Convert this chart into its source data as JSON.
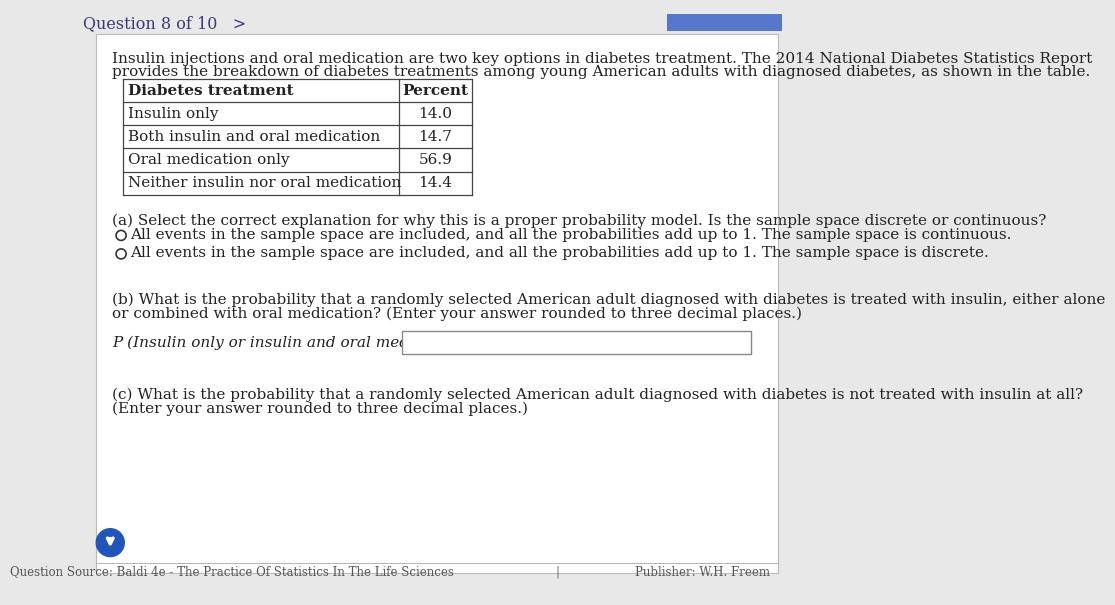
{
  "bg_color": "#e8e8e8",
  "card_color": "#ffffff",
  "header_text": "Question 8 of 10   >",
  "intro_line1": "Insulin injections and oral medication are two key options in diabetes treatment. The 2014 National Diabetes Statistics Report",
  "intro_line2": "provides the breakdown of diabetes treatments among young American adults with diagnosed diabetes, as shown in the table.",
  "table_headers": [
    "Diabetes treatment",
    "Percent"
  ],
  "table_rows": [
    [
      "Insulin only",
      "14.0"
    ],
    [
      "Both insulin and oral medication",
      "14.7"
    ],
    [
      "Oral medication only",
      "56.9"
    ],
    [
      "Neither insulin nor oral medication",
      "14.4"
    ]
  ],
  "part_a_label": "(a) S",
  "part_a_label_colored": "elect the correct explanation for why this is a proper probability model. Is the sample space discrete or continuous?",
  "part_a_text": "(a) Select the correct explanation for why this is a proper probability model. Is the sample space discrete or continuous?",
  "option1": "All events in the sample space are included, and all the probabilities add up to 1. The sample space is continuous.",
  "option2": "All events in the sample space are included, and all the probabilities add up to 1. The sample space is discrete.",
  "part_b_line1": "(b) What is the probability that a randomly selected American adult diagnosed with diabetes is treated with insulin, either alone",
  "part_b_line2": "or combined with oral medication? (Enter your answer rounded to three decimal places.)",
  "part_b_label": "P (Insulin only or insulin and oral medication) =",
  "part_c_line1": "(c) What is the probability that a randomly selected American adult diagnosed with diabetes is not treated with insulin at all?",
  "part_c_line2": "(Enter your answer rounded to three decimal places.)",
  "footer_left": "Question Source: Baldi 4e - The Practice Of Statistics In The Life Sciences",
  "footer_right": "Publisher: W.H. Freem",
  "header_color": "#3a3a7a",
  "text_color": "#222222",
  "table_border_color": "#444444",
  "option_color_a": "#4444aa",
  "font_size_intro": 11.0,
  "font_size_table": 11.0,
  "font_size_body": 11.0,
  "font_size_header": 11.5,
  "font_size_footer": 8.5,
  "arrow_circle_color": "#2255bb",
  "input_box_color": "#ffffff",
  "input_box_border": "#888888",
  "top_right_button_color": "#5577cc",
  "separator_color": "#aaaaaa"
}
